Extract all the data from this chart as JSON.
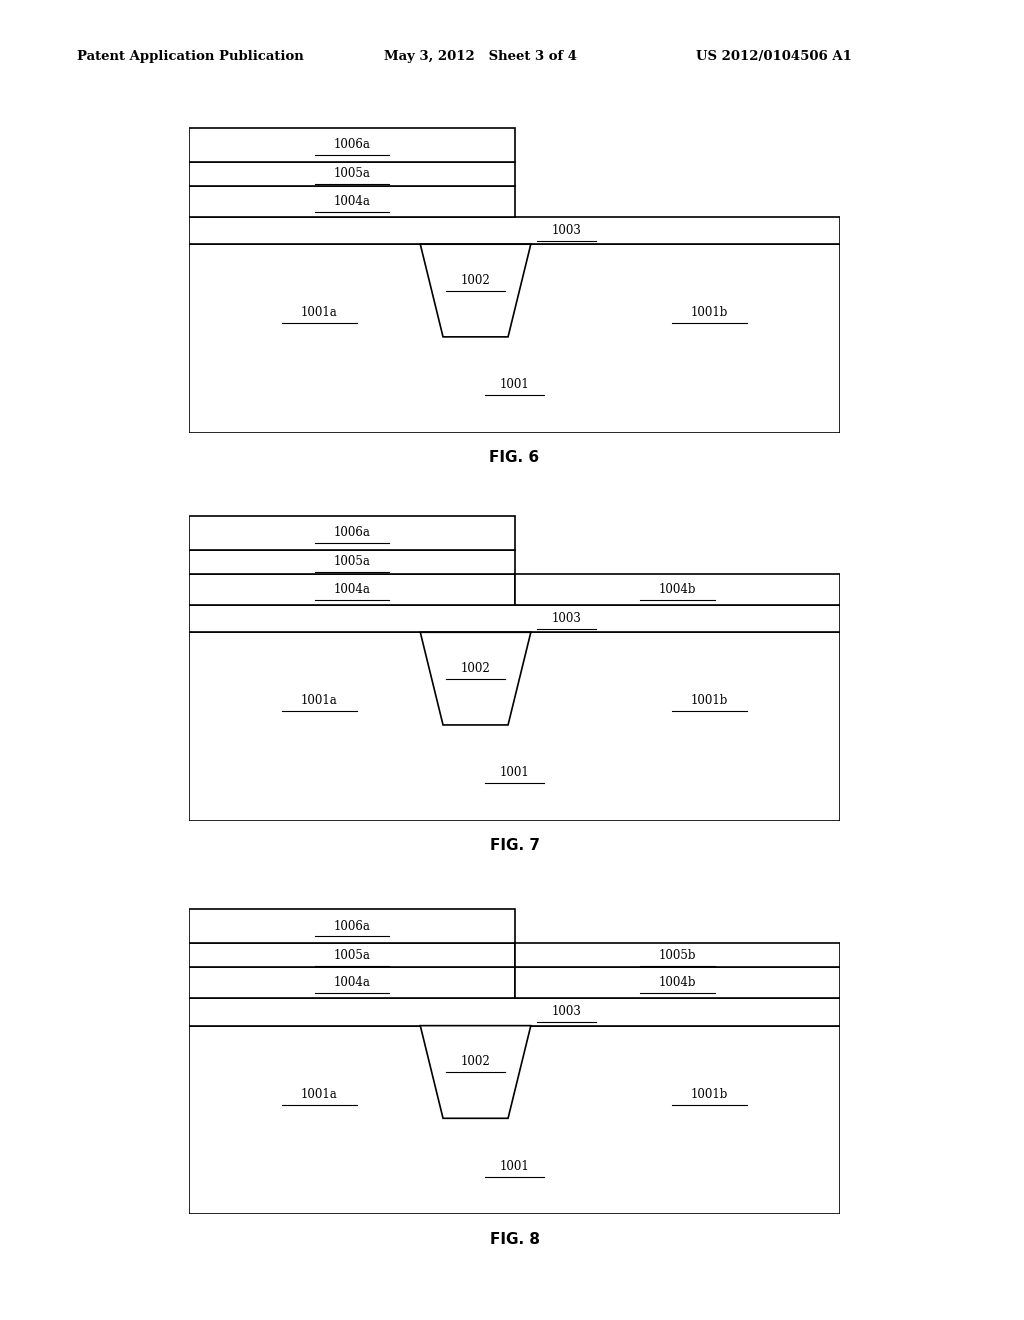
{
  "header_left": "Patent Application Publication",
  "header_mid": "May 3, 2012   Sheet 3 of 4",
  "header_right": "US 2012/0104506 A1",
  "bg_color": "#ffffff",
  "line_color": "#000000",
  "text_color": "#000000",
  "figures": [
    {
      "name": "FIG. 6",
      "layers_right": []
    },
    {
      "name": "FIG. 7",
      "layers_right": [
        "1004b"
      ]
    },
    {
      "name": "FIG. 8",
      "layers_right": [
        "1005b",
        "1004b"
      ]
    }
  ]
}
